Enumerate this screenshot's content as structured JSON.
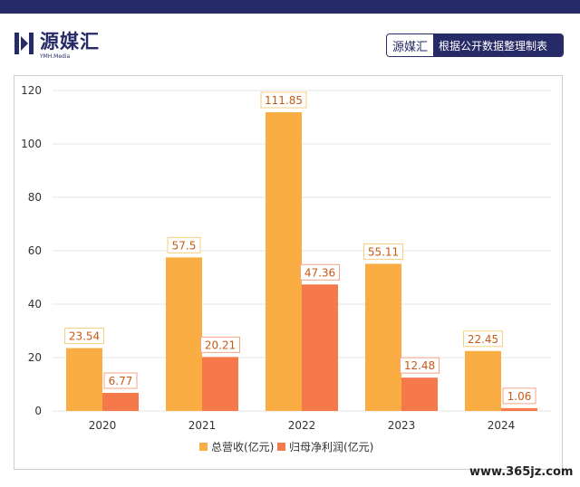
{
  "header": {
    "logo_cn": "源媒汇",
    "logo_en": "YMH.Media",
    "source_brand": "源媒汇",
    "source_note": "根据公开数据整理制表"
  },
  "watermark": "www.365jz.com",
  "colors": {
    "revenue": "#f9ad42",
    "profit": "#f5794a",
    "revenue_label_border": "#f7cf7f",
    "profit_label_border": "#f3a584",
    "label_text": "#c75a16",
    "grid": "#e6e6e6",
    "axis_text": "#333333",
    "brand": "#262a66"
  },
  "chart_data": {
    "type": "bar",
    "categories": [
      "2020",
      "2021",
      "2022",
      "2023",
      "2024"
    ],
    "series": [
      {
        "name": "总营收(亿元)",
        "values": [
          23.54,
          57.5,
          111.85,
          55.11,
          22.45
        ]
      },
      {
        "name": "归母净利润(亿元)",
        "values": [
          6.77,
          20.21,
          47.36,
          12.48,
          1.06
        ]
      }
    ],
    "y_ticks": [
      "0",
      "20",
      "40",
      "60",
      "80",
      "100",
      "120"
    ],
    "ylim": [
      0,
      120
    ],
    "grid": true,
    "legend_position": "bottom-center"
  }
}
